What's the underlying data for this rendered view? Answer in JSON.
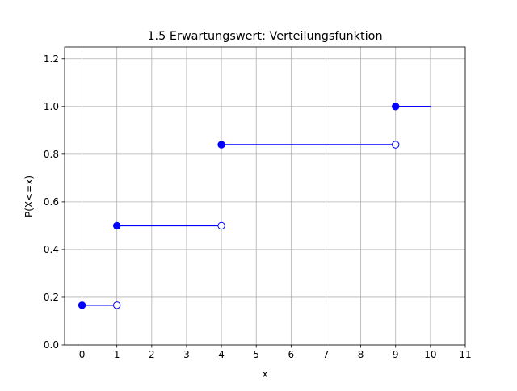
{
  "chart_data": {
    "type": "line",
    "title": "1.5 Erwartungswert: Verteilungsfunktion",
    "xlabel": "x",
    "ylabel": "P(X<=x)",
    "xlim": [
      -0.5,
      11
    ],
    "ylim": [
      0,
      1.25
    ],
    "xticks": [
      0,
      1,
      2,
      3,
      4,
      5,
      6,
      7,
      8,
      9,
      10,
      11
    ],
    "yticks": [
      0.0,
      0.2,
      0.4,
      0.6,
      0.8,
      1.0,
      1.2
    ],
    "xtick_labels": [
      "0",
      "1",
      "2",
      "3",
      "4",
      "5",
      "6",
      "7",
      "8",
      "9",
      "10",
      "11"
    ],
    "ytick_labels": [
      "0.0",
      "0.2",
      "0.4",
      "0.6",
      "0.8",
      "1.0",
      "1.2"
    ],
    "grid": true,
    "color": "#0000ff",
    "grid_color": "#b0b0b0",
    "steps": [
      {
        "x_start": 0,
        "x_end": 1,
        "y": 0.1667,
        "start_filled": true,
        "end_open": true
      },
      {
        "x_start": 1,
        "x_end": 4,
        "y": 0.5,
        "start_filled": true,
        "end_open": true
      },
      {
        "x_start": 4,
        "x_end": 9,
        "y": 0.84,
        "start_filled": true,
        "end_open": true
      },
      {
        "x_start": 9,
        "x_end": 10,
        "y": 1.0,
        "start_filled": true,
        "end_open": false
      }
    ]
  }
}
